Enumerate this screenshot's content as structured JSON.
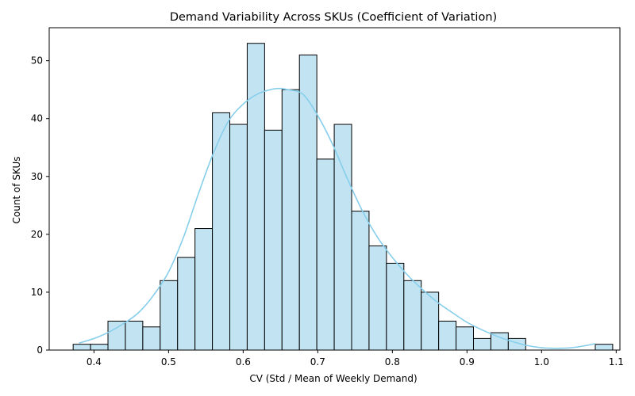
{
  "chart_data": {
    "type": "bar",
    "subtype": "histogram",
    "title": "Demand Variability Across SKUs (Coefficient of Variation)",
    "xlabel": "CV (Std / Mean of Weekly Demand)",
    "ylabel": "Count of SKUs",
    "xlim": [
      0.34,
      1.105
    ],
    "ylim": [
      0,
      55.7
    ],
    "x_ticks": [
      0.4,
      0.5,
      0.6,
      0.7,
      0.8,
      0.9,
      1.0,
      1.1
    ],
    "x_tick_labels": [
      "0.4",
      "0.5",
      "0.6",
      "0.7",
      "0.8",
      "0.9",
      "1.0",
      "1.1"
    ],
    "y_ticks": [
      0,
      10,
      20,
      30,
      40,
      50
    ],
    "y_tick_labels": [
      "0",
      "10",
      "20",
      "30",
      "40",
      "50"
    ],
    "bin_start": 0.3721,
    "bin_width": 0.02333,
    "counts": [
      1,
      1,
      5,
      5,
      4,
      12,
      16,
      21,
      41,
      39,
      53,
      38,
      45,
      51,
      33,
      39,
      24,
      18,
      15,
      12,
      10,
      5,
      4,
      2,
      3,
      2,
      0,
      0,
      0,
      0,
      1
    ],
    "kde": {
      "x": [
        0.38,
        0.4,
        0.42,
        0.44,
        0.46,
        0.48,
        0.5,
        0.52,
        0.54,
        0.56,
        0.58,
        0.6,
        0.62,
        0.64,
        0.65,
        0.66,
        0.68,
        0.7,
        0.72,
        0.74,
        0.76,
        0.78,
        0.8,
        0.82,
        0.84,
        0.86,
        0.88,
        0.9,
        0.92,
        0.94,
        0.96,
        0.98,
        1.0,
        1.02,
        1.04,
        1.06,
        1.072
      ],
      "y": [
        1.2,
        2.0,
        3.1,
        4.6,
        6.5,
        9.5,
        13.5,
        19.5,
        27.0,
        34.0,
        39.5,
        42.5,
        44.3,
        45.1,
        45.2,
        45.0,
        44.2,
        40.5,
        35.5,
        29.5,
        24.0,
        19.5,
        16.0,
        13.0,
        10.5,
        8.3,
        6.5,
        4.8,
        3.5,
        2.4,
        1.5,
        0.8,
        0.4,
        0.3,
        0.4,
        0.8,
        1.1
      ]
    },
    "grid": false,
    "legend": "none",
    "colors": {
      "bar_fill": "#c2e4f2",
      "bar_edge": "#000000",
      "kde_line": "#87ceeb"
    }
  }
}
